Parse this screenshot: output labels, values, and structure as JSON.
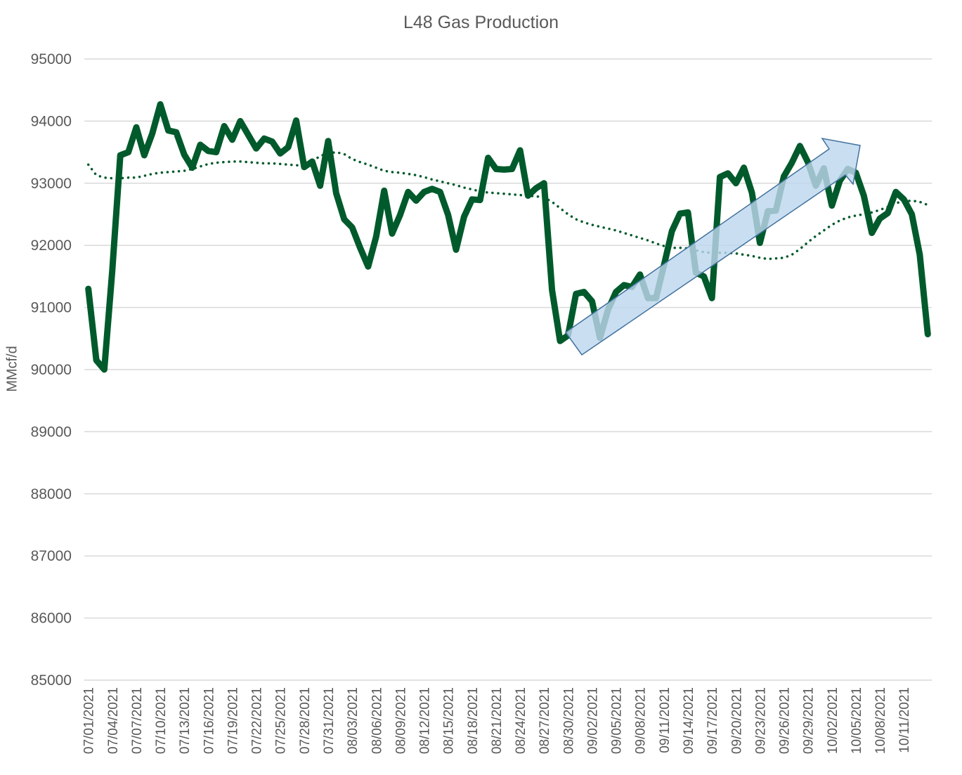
{
  "chart_data": {
    "type": "line",
    "title": "L48 Gas Production",
    "xlabel": "",
    "ylabel": "MMcf/d",
    "ylim": [
      85000,
      95000
    ],
    "y_ticks": [
      85000,
      86000,
      87000,
      88000,
      89000,
      90000,
      91000,
      92000,
      93000,
      94000,
      95000
    ],
    "x_tick_labels": [
      "07/01/2021",
      "07/04/2021",
      "07/07/2021",
      "07/10/2021",
      "07/13/2021",
      "07/16/2021",
      "07/19/2021",
      "07/22/2021",
      "07/25/2021",
      "07/28/2021",
      "07/31/2021",
      "08/03/2021",
      "08/06/2021",
      "08/09/2021",
      "08/12/2021",
      "08/15/2021",
      "08/18/2021",
      "08/21/2021",
      "08/24/2021",
      "08/27/2021",
      "08/30/2021",
      "09/02/2021",
      "09/05/2021",
      "09/08/2021",
      "09/11/2021",
      "09/14/2021",
      "09/17/2021",
      "09/20/2021",
      "09/23/2021",
      "09/26/2021",
      "09/29/2021",
      "10/02/2021",
      "10/05/2021",
      "10/08/2021",
      "10/11/2021"
    ],
    "x_start": "07/01/2021",
    "x_end": "10/13/2021",
    "grid": true,
    "legend": "none",
    "series": [
      {
        "kind": "solid",
        "color": "#005a2b",
        "values": [
          91300,
          90150,
          90000,
          91600,
          93450,
          93500,
          93900,
          93450,
          93800,
          94270,
          93850,
          93820,
          93460,
          93250,
          93620,
          93520,
          93500,
          93920,
          93700,
          94000,
          93780,
          93560,
          93720,
          93670,
          93480,
          93580,
          94010,
          93260,
          93350,
          92960,
          93680,
          92840,
          92420,
          92290,
          91960,
          91660,
          92140,
          92880,
          92190,
          92490,
          92860,
          92720,
          92860,
          92910,
          92860,
          92490,
          91930,
          92460,
          92740,
          92730,
          93410,
          93230,
          93220,
          93230,
          93530,
          92800,
          92920,
          93000,
          91280,
          90460,
          90550,
          91220,
          91250,
          91100,
          90510,
          90960,
          91250,
          91360,
          91330,
          91530,
          91150,
          91150,
          91680,
          92230,
          92510,
          92530,
          91560,
          91500,
          91150,
          93100,
          93160,
          93000,
          93250,
          92850,
          92040,
          92550,
          92560,
          93110,
          93330,
          93600,
          93340,
          92960,
          93240,
          92640,
          93040,
          93230,
          93170,
          92800,
          92200,
          92430,
          92520,
          92860,
          92740,
          92500,
          91850,
          90570
        ]
      },
      {
        "kind": "dotted",
        "color": "#005a2b",
        "values": [
          93300,
          93130,
          93090,
          93080,
          93080,
          93090,
          93090,
          93120,
          93150,
          93170,
          93180,
          93190,
          93200,
          93230,
          93270,
          93310,
          93330,
          93340,
          93350,
          93350,
          93340,
          93330,
          93320,
          93320,
          93310,
          93300,
          93290,
          93280,
          93350,
          93440,
          93480,
          93500,
          93470,
          93390,
          93340,
          93300,
          93250,
          93200,
          93180,
          93170,
          93150,
          93130,
          93100,
          93060,
          93030,
          93000,
          92970,
          92930,
          92900,
          92870,
          92850,
          92840,
          92830,
          92820,
          92810,
          92800,
          92790,
          92770,
          92700,
          92600,
          92500,
          92420,
          92370,
          92330,
          92300,
          92270,
          92240,
          92200,
          92160,
          92120,
          92080,
          92030,
          91990,
          91960,
          91960,
          91950,
          91920,
          91890,
          91880,
          91880,
          91880,
          91870,
          91850,
          91830,
          91800,
          91780,
          91790,
          91800,
          91850,
          91940,
          92050,
          92150,
          92240,
          92330,
          92400,
          92450,
          92480,
          92500,
          92530,
          92570,
          92620,
          92680,
          92710,
          92720,
          92700,
          92650
        ]
      }
    ],
    "annotations": [
      {
        "type": "arrow",
        "fill": "#bdd7ee",
        "stroke": "#41719c"
      }
    ]
  }
}
